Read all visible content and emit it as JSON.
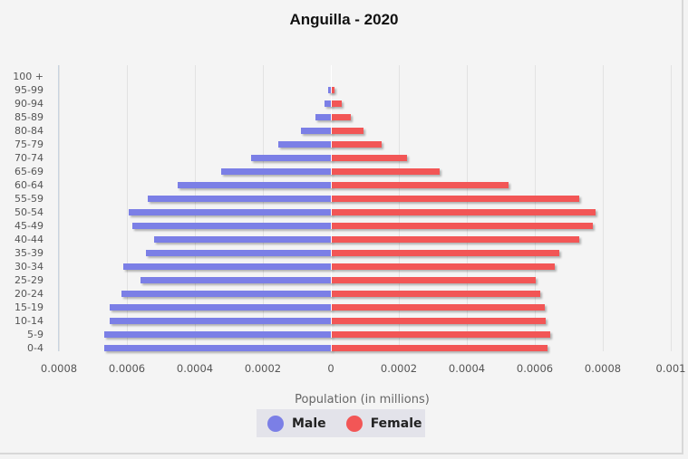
{
  "title": "Anguilla - 2020",
  "colors": {
    "male": "#7b7fe6",
    "female": "#f25656"
  },
  "legend": [
    {
      "label": "Male",
      "color": "#7b7fe6"
    },
    {
      "label": "Female",
      "color": "#f25656"
    }
  ],
  "chart_data": {
    "type": "bar",
    "orientation": "horizontal",
    "subtype": "population-pyramid",
    "title": "Anguilla - 2020",
    "xlabel": "Population (in millions)",
    "ylabel": "",
    "categories": [
      "0-4",
      "5-9",
      "10-14",
      "15-19",
      "20-24",
      "25-29",
      "30-34",
      "35-39",
      "40-44",
      "45-49",
      "50-54",
      "55-59",
      "60-64",
      "65-69",
      "70-74",
      "75-79",
      "80-84",
      "85-89",
      "90-94",
      "95-99",
      "100 +"
    ],
    "series": [
      {
        "name": "Male",
        "color": "#7b7fe6",
        "values": [
          0.000667,
          0.000667,
          0.00065,
          0.00065,
          0.000616,
          0.00056,
          0.000611,
          0.000544,
          0.00052,
          0.000584,
          0.000595,
          0.000539,
          0.000451,
          0.000323,
          0.000235,
          0.000155,
          8.8e-05,
          4.5e-05,
          1.9e-05,
          8e-06,
          0
        ]
      },
      {
        "name": "Female",
        "color": "#f25656",
        "values": [
          0.000635,
          0.000643,
          0.000629,
          0.000627,
          0.000613,
          0.0006,
          0.000656,
          0.000669,
          0.000728,
          0.000768,
          0.000776,
          0.000728,
          0.00052,
          0.000317,
          0.000221,
          0.000147,
          9.3e-05,
          5.6e-05,
          2.9e-05,
          8e-06,
          0
        ]
      }
    ],
    "x_ticks": [
      "0.0008",
      "0.0006",
      "0.0004",
      "0.0002",
      "0",
      "0.0002",
      "0.0004",
      "0.0006",
      "0.0008",
      "0.001"
    ],
    "xlim": [
      -0.0008,
      0.001
    ],
    "grid": true,
    "legend_position": "bottom"
  }
}
